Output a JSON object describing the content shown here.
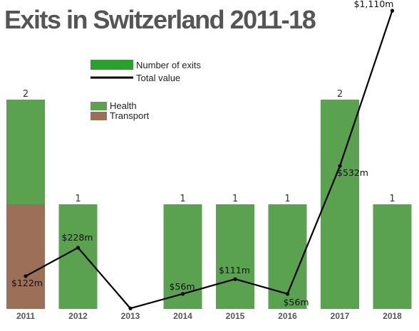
{
  "chart_data": {
    "type": "bar",
    "title": "Exits in Switzerland 2011-18",
    "categories": [
      "2011",
      "2012",
      "2013",
      "2014",
      "2015",
      "2016",
      "2017",
      "2018"
    ],
    "series": [
      {
        "name": "Health",
        "values": [
          1,
          1,
          0,
          1,
          1,
          1,
          2,
          1
        ]
      },
      {
        "name": "Transport",
        "values": [
          1,
          0,
          0,
          0,
          0,
          0,
          0,
          0
        ]
      }
    ],
    "bar_count_labels": [
      "2",
      "1",
      "",
      "1",
      "1",
      "1",
      "2",
      "1"
    ],
    "line_series": {
      "name": "Total value",
      "values": [
        122,
        228,
        2,
        56,
        111,
        56,
        532,
        1110
      ],
      "labels": [
        "$122m",
        "$228m",
        "",
        "$56m",
        "$111m",
        "$56m",
        "$532m",
        "$1,110m"
      ]
    },
    "legend": {
      "chart_types": [
        "Number of exits",
        "Total value"
      ],
      "sectors": [
        "Health",
        "Transport"
      ]
    },
    "ylim_count": [
      0,
      2
    ],
    "ylim_value": [
      0,
      1110
    ],
    "colors": {
      "health": "#5aa150",
      "transport": "#9c7058",
      "legend_exits": "#2ca02c",
      "line": "#000000",
      "title": "#555555"
    },
    "grid": false
  }
}
